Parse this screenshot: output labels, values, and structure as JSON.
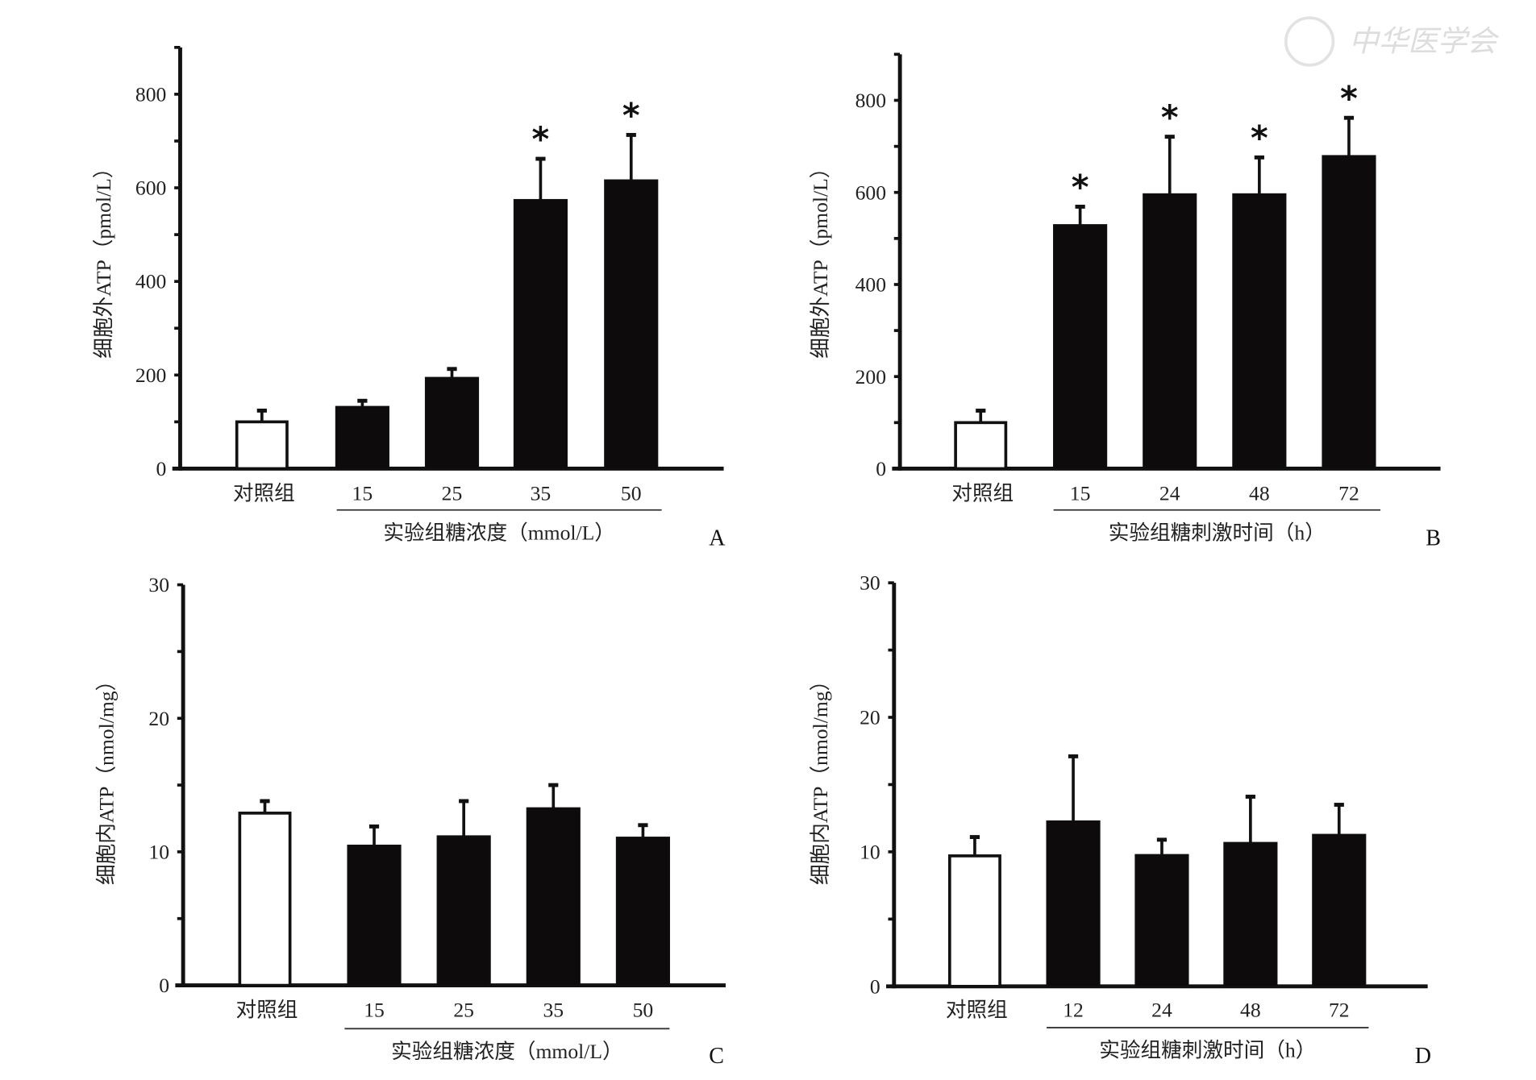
{
  "watermark": "中华医学会",
  "chart_data": [
    {
      "panel": "A",
      "type": "bar",
      "ylabel": "细胞外ATP（pmol/L）",
      "xlabel": "实验组糖浓度（mmol/L）",
      "categories": [
        "对照组",
        "15",
        "25",
        "35",
        "50"
      ],
      "values": [
        100,
        133,
        195,
        575,
        617
      ],
      "error_upper": [
        124,
        145,
        213,
        662,
        713
      ],
      "significant": [
        false,
        false,
        false,
        true,
        true
      ],
      "ylim": [
        0,
        900
      ],
      "yticks": [
        0,
        200,
        400,
        600,
        800
      ],
      "minor_tick_step": 100,
      "control_fill": "#ffffff",
      "bar_fill": "#0d0b0b"
    },
    {
      "panel": "B",
      "type": "bar",
      "ylabel": "细胞外ATP（pmol/L）",
      "xlabel": "实验组糖刺激时间（h）",
      "categories": [
        "对照组",
        "15",
        "24",
        "48",
        "72"
      ],
      "values": [
        100,
        530,
        597,
        597,
        680
      ],
      "error_upper": [
        126,
        569,
        721,
        676,
        762
      ],
      "significant": [
        false,
        true,
        true,
        true,
        true
      ],
      "ylim": [
        0,
        900
      ],
      "yticks": [
        0,
        200,
        400,
        600,
        800
      ],
      "minor_tick_step": 100,
      "control_fill": "#ffffff",
      "bar_fill": "#0d0b0b"
    },
    {
      "panel": "C",
      "type": "bar",
      "ylabel": "细胞内ATP（nmol/mg）",
      "xlabel": "实验组糖浓度（mmol/L）",
      "categories": [
        "对照组",
        "15",
        "25",
        "35",
        "50"
      ],
      "values": [
        12.9,
        10.5,
        11.2,
        13.3,
        11.1
      ],
      "error_upper": [
        13.8,
        11.9,
        13.8,
        15.0,
        12.0
      ],
      "significant": [
        false,
        false,
        false,
        false,
        false
      ],
      "ylim": [
        0,
        30
      ],
      "yticks": [
        0,
        10,
        20,
        30
      ],
      "minor_tick_step": 5,
      "control_fill": "#ffffff",
      "bar_fill": "#0d0b0b"
    },
    {
      "panel": "D",
      "type": "bar",
      "ylabel": "细胞内ATP（nmol/mg）",
      "xlabel": "实验组糖刺激时间（h）",
      "categories": [
        "对照组",
        "12",
        "24",
        "48",
        "72"
      ],
      "values": [
        9.7,
        12.3,
        9.8,
        10.7,
        11.3
      ],
      "error_upper": [
        11.1,
        17.1,
        10.9,
        14.1,
        13.5
      ],
      "significant": [
        false,
        false,
        false,
        false,
        false
      ],
      "ylim": [
        0,
        30
      ],
      "yticks": [
        0,
        10,
        20,
        30
      ],
      "minor_tick_step": 5,
      "control_fill": "#ffffff",
      "bar_fill": "#0d0b0b"
    }
  ]
}
